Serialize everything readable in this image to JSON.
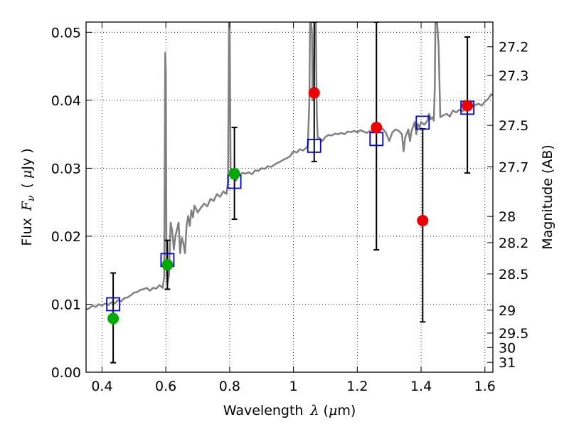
{
  "chart_data": {
    "type": "scatter",
    "xlabel": {
      "prefix": "Wavelength",
      "symbol": "λ",
      "unit_open": "(",
      "unit_mu": "μ",
      "unit_rest": "m)"
    },
    "ylabel": {
      "prefix": "Flux",
      "symbol": "F",
      "subscript": "ν",
      "unit_open": "(",
      "unit_mu": "μ",
      "unit_rest": "Jy",
      "unit_close": ")"
    },
    "y2label": "Magnitude (AB)",
    "xlim": [
      0.35,
      1.625
    ],
    "ylim": [
      0.0,
      0.0515
    ],
    "grid": true,
    "x_ticks": [
      {
        "value": 0.4,
        "label": "0.4"
      },
      {
        "value": 0.6,
        "label": "0.6"
      },
      {
        "value": 0.8,
        "label": "0.8"
      },
      {
        "value": 1.0,
        "label": "1"
      },
      {
        "value": 1.2,
        "label": "1.2"
      },
      {
        "value": 1.4,
        "label": "1.4"
      },
      {
        "value": 1.6,
        "label": "1.6"
      }
    ],
    "y_ticks": [
      {
        "value": 0.0,
        "label": "0.00"
      },
      {
        "value": 0.01,
        "label": "0.01"
      },
      {
        "value": 0.02,
        "label": "0.02"
      },
      {
        "value": 0.03,
        "label": "0.03"
      },
      {
        "value": 0.04,
        "label": "0.04"
      },
      {
        "value": 0.05,
        "label": "0.05"
      }
    ],
    "y2_ticks": [
      {
        "value": 27.2,
        "label": "27.2"
      },
      {
        "value": 27.3,
        "label": "27.3"
      },
      {
        "value": 27.5,
        "label": "27.5"
      },
      {
        "value": 27.7,
        "label": "27.7"
      },
      {
        "value": 28.0,
        "label": "28"
      },
      {
        "value": 28.2,
        "label": "28.2"
      },
      {
        "value": 28.5,
        "label": "28.5"
      },
      {
        "value": 29.0,
        "label": "29"
      },
      {
        "value": 29.5,
        "label": "29.5"
      },
      {
        "value": 30.0,
        "label": "30"
      },
      {
        "value": 31.0,
        "label": "31"
      }
    ],
    "model_spectrum": {
      "color": "#808080",
      "points": [
        [
          0.35,
          0.0092
        ],
        [
          0.36,
          0.0094
        ],
        [
          0.37,
          0.0098
        ],
        [
          0.38,
          0.0096
        ],
        [
          0.39,
          0.01
        ],
        [
          0.4,
          0.0098
        ],
        [
          0.41,
          0.0101
        ],
        [
          0.42,
          0.0099
        ],
        [
          0.43,
          0.0103
        ],
        [
          0.44,
          0.0101
        ],
        [
          0.45,
          0.0106
        ],
        [
          0.46,
          0.0104
        ],
        [
          0.47,
          0.0109
        ],
        [
          0.48,
          0.011
        ],
        [
          0.49,
          0.0113
        ],
        [
          0.5,
          0.0117
        ],
        [
          0.51,
          0.0118
        ],
        [
          0.52,
          0.0121
        ],
        [
          0.53,
          0.0122
        ],
        [
          0.54,
          0.0124
        ],
        [
          0.55,
          0.012
        ],
        [
          0.56,
          0.0124
        ],
        [
          0.57,
          0.0123
        ],
        [
          0.58,
          0.0128
        ],
        [
          0.59,
          0.0124
        ],
        [
          0.595,
          0.014
        ],
        [
          0.598,
          0.047
        ],
        [
          0.6,
          0.044
        ],
        [
          0.602,
          0.015
        ],
        [
          0.605,
          0.013
        ],
        [
          0.61,
          0.0143
        ],
        [
          0.615,
          0.022
        ],
        [
          0.62,
          0.0208
        ],
        [
          0.625,
          0.018
        ],
        [
          0.63,
          0.02
        ],
        [
          0.64,
          0.022
        ],
        [
          0.645,
          0.0175
        ],
        [
          0.65,
          0.0198
        ],
        [
          0.655,
          0.019
        ],
        [
          0.66,
          0.0175
        ],
        [
          0.665,
          0.0215
        ],
        [
          0.67,
          0.023
        ],
        [
          0.675,
          0.0215
        ],
        [
          0.68,
          0.0238
        ],
        [
          0.685,
          0.0228
        ],
        [
          0.69,
          0.0245
        ],
        [
          0.7,
          0.0235
        ],
        [
          0.71,
          0.0242
        ],
        [
          0.72,
          0.0248
        ],
        [
          0.73,
          0.0244
        ],
        [
          0.74,
          0.0255
        ],
        [
          0.75,
          0.0252
        ],
        [
          0.76,
          0.0262
        ],
        [
          0.77,
          0.0258
        ],
        [
          0.78,
          0.0266
        ],
        [
          0.79,
          0.0262
        ],
        [
          0.795,
          0.028
        ],
        [
          0.798,
          0.0515
        ],
        [
          0.8,
          0.0515
        ],
        [
          0.803,
          0.03
        ],
        [
          0.806,
          0.0285
        ],
        [
          0.81,
          0.0285
        ],
        [
          0.815,
          0.0286
        ],
        [
          0.82,
          0.0282
        ],
        [
          0.83,
          0.029
        ],
        [
          0.84,
          0.0293
        ],
        [
          0.85,
          0.0292
        ],
        [
          0.86,
          0.0294
        ],
        [
          0.87,
          0.0291
        ],
        [
          0.88,
          0.0297
        ],
        [
          0.89,
          0.0296
        ],
        [
          0.9,
          0.03
        ],
        [
          0.91,
          0.0299
        ],
        [
          0.92,
          0.0303
        ],
        [
          0.93,
          0.0302
        ],
        [
          0.94,
          0.0305
        ],
        [
          0.95,
          0.0308
        ],
        [
          0.96,
          0.031
        ],
        [
          0.97,
          0.0313
        ],
        [
          0.98,
          0.0315
        ],
        [
          0.99,
          0.0318
        ],
        [
          1.0,
          0.0325
        ],
        [
          1.01,
          0.0323
        ],
        [
          1.02,
          0.0328
        ],
        [
          1.03,
          0.0326
        ],
        [
          1.04,
          0.033
        ],
        [
          1.045,
          0.0333
        ],
        [
          1.05,
          0.04
        ],
        [
          1.052,
          0.0515
        ],
        [
          1.055,
          0.0515
        ],
        [
          1.058,
          0.05
        ],
        [
          1.06,
          0.04
        ],
        [
          1.063,
          0.04
        ],
        [
          1.066,
          0.0515
        ],
        [
          1.07,
          0.0515
        ],
        [
          1.073,
          0.038
        ],
        [
          1.076,
          0.0345
        ],
        [
          1.08,
          0.0345
        ],
        [
          1.09,
          0.034
        ],
        [
          1.1,
          0.0346
        ],
        [
          1.11,
          0.0349
        ],
        [
          1.12,
          0.0348
        ],
        [
          1.13,
          0.0351
        ],
        [
          1.14,
          0.035
        ],
        [
          1.15,
          0.0352
        ],
        [
          1.16,
          0.035
        ],
        [
          1.17,
          0.0354
        ],
        [
          1.18,
          0.0353
        ],
        [
          1.19,
          0.0355
        ],
        [
          1.2,
          0.0353
        ],
        [
          1.21,
          0.0356
        ],
        [
          1.22,
          0.0354
        ],
        [
          1.23,
          0.0352
        ],
        [
          1.24,
          0.0355
        ],
        [
          1.25,
          0.0353
        ],
        [
          1.26,
          0.0357
        ],
        [
          1.27,
          0.0356
        ],
        [
          1.28,
          0.0358
        ],
        [
          1.29,
          0.0352
        ],
        [
          1.3,
          0.034
        ],
        [
          1.31,
          0.0353
        ],
        [
          1.32,
          0.0357
        ],
        [
          1.33,
          0.0355
        ],
        [
          1.34,
          0.035
        ],
        [
          1.345,
          0.0325
        ],
        [
          1.35,
          0.0345
        ],
        [
          1.36,
          0.0357
        ],
        [
          1.365,
          0.034
        ],
        [
          1.37,
          0.0355
        ],
        [
          1.38,
          0.0368
        ],
        [
          1.385,
          0.035
        ],
        [
          1.39,
          0.0365
        ],
        [
          1.395,
          0.036
        ],
        [
          1.4,
          0.0368
        ],
        [
          1.41,
          0.0364
        ],
        [
          1.42,
          0.037
        ],
        [
          1.425,
          0.038
        ],
        [
          1.43,
          0.0372
        ],
        [
          1.435,
          0.0375
        ],
        [
          1.44,
          0.037
        ],
        [
          1.443,
          0.042
        ],
        [
          1.445,
          0.0515
        ],
        [
          1.45,
          0.0515
        ],
        [
          1.455,
          0.048
        ],
        [
          1.46,
          0.0375
        ],
        [
          1.47,
          0.0378
        ],
        [
          1.48,
          0.038
        ],
        [
          1.49,
          0.0376
        ],
        [
          1.5,
          0.0385
        ],
        [
          1.51,
          0.0382
        ],
        [
          1.52,
          0.0386
        ],
        [
          1.53,
          0.0384
        ],
        [
          1.54,
          0.0388
        ],
        [
          1.55,
          0.0392
        ],
        [
          1.56,
          0.039
        ],
        [
          1.57,
          0.0393
        ],
        [
          1.58,
          0.0395
        ],
        [
          1.59,
          0.0392
        ],
        [
          1.6,
          0.0398
        ],
        [
          1.61,
          0.0402
        ],
        [
          1.62,
          0.0409
        ],
        [
          1.625,
          0.0407
        ]
      ]
    },
    "model_photometry": {
      "marker": "open-square",
      "color": "#0000cc",
      "points": [
        [
          0.435,
          0.01
        ],
        [
          0.605,
          0.0165
        ],
        [
          0.815,
          0.028
        ],
        [
          1.065,
          0.0333
        ],
        [
          1.26,
          0.0343
        ],
        [
          1.405,
          0.0367
        ],
        [
          1.545,
          0.0389
        ]
      ]
    },
    "observed": [
      {
        "color": "#00aa00",
        "points": [
          {
            "x": 0.435,
            "y": 0.0079,
            "ylo": 0.0014,
            "yhi": 0.0146
          },
          {
            "x": 0.605,
            "y": 0.0158,
            "ylo": 0.0122,
            "yhi": 0.0194
          },
          {
            "x": 0.815,
            "y": 0.0292,
            "ylo": 0.0225,
            "yhi": 0.036
          }
        ]
      },
      {
        "color": "#ee0000",
        "points": [
          {
            "x": 1.065,
            "y": 0.0411,
            "ylo": 0.031,
            "yhi": 0.0515
          },
          {
            "x": 1.26,
            "y": 0.036,
            "ylo": 0.018,
            "yhi": 0.0515
          },
          {
            "x": 1.405,
            "y": 0.0223,
            "ylo": 0.0074,
            "yhi": 0.0358
          },
          {
            "x": 1.545,
            "y": 0.0392,
            "ylo": 0.0293,
            "yhi": 0.0493
          }
        ]
      }
    ]
  }
}
